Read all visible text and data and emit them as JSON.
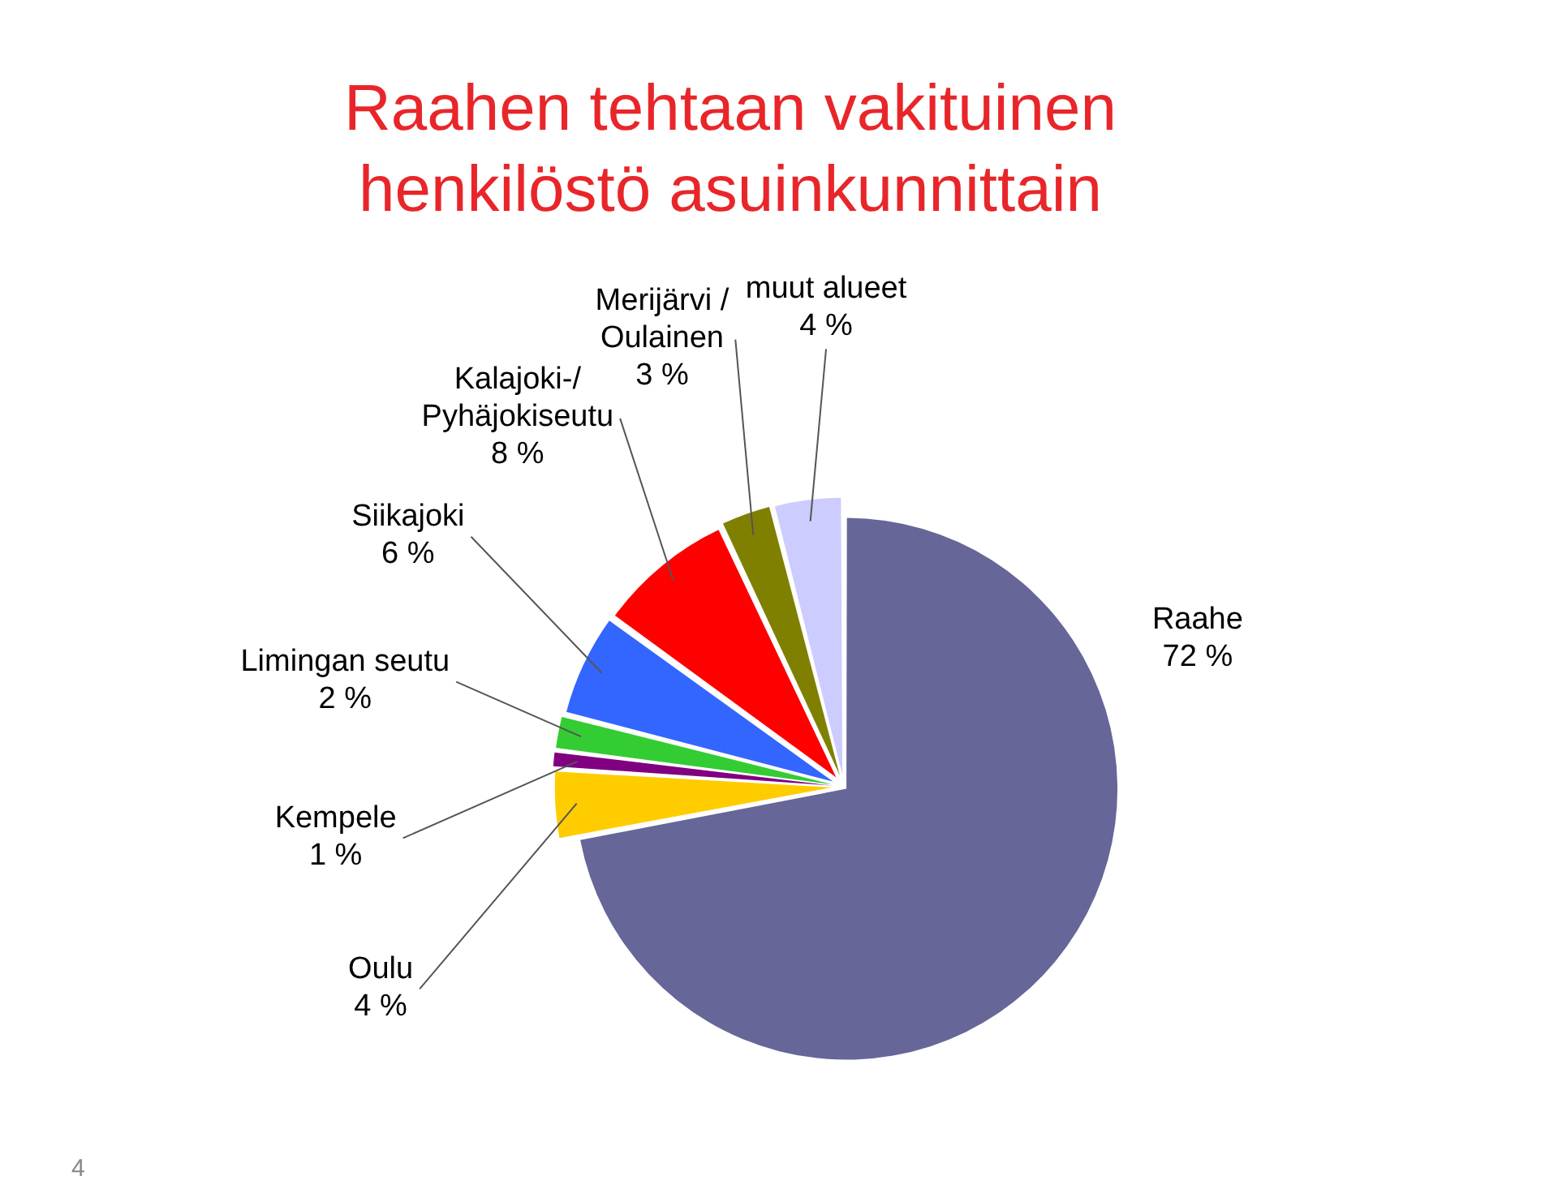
{
  "chart_data": {
    "type": "pie",
    "title": "Raahen tehtaan vakituinen henkilöstö asuinkunnittain",
    "categories": [
      "Raahe",
      "Oulu",
      "Kempele",
      "Limingan seutu",
      "Siikajoki",
      "Kalajoki-/\nPyhäjokiseutu",
      "Merijärvi /\nOulainen",
      "muut alueet"
    ],
    "values": [
      72,
      4,
      1,
      2,
      6,
      8,
      3,
      4
    ],
    "colors": [
      "#666699",
      "#ffcc00",
      "#800080",
      "#33cc33",
      "#3366ff",
      "#ff0000",
      "#808000",
      "#ccccff"
    ],
    "value_labels": [
      "72 %",
      "4 %",
      "1 %",
      "2 %",
      "6 %",
      "8 %",
      "3 %",
      "4 %"
    ],
    "annotations": [
      "4"
    ]
  }
}
